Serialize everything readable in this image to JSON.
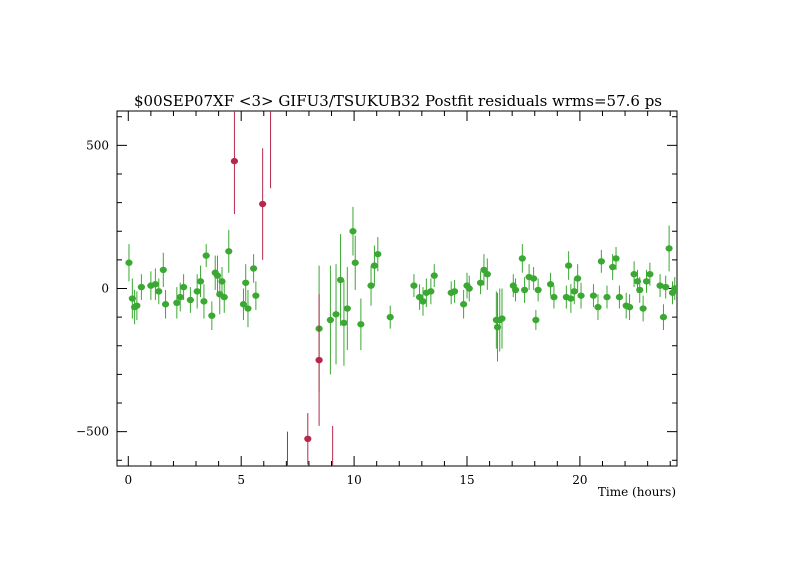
{
  "chart_data": {
    "type": "scatter",
    "title": "$00SEP07XF <3> GIFU3/TSUKUB32 Postfit residuals wrms=57.6  ps",
    "xlabel": "Time (hours)",
    "ylabel": "",
    "xlim": [
      -0.5,
      24.3
    ],
    "ylim": [
      -620,
      620
    ],
    "x_ticks": [
      0,
      5,
      10,
      15,
      20
    ],
    "y_ticks": [
      500,
      0,
      -500
    ],
    "grid": false,
    "legend": "none",
    "colors": {
      "good": "#3aa832",
      "outlier": "#b5284c",
      "axis": "#000000"
    },
    "series": [
      {
        "points": [
          {
            "x": 0.03,
            "y": 90,
            "e": 65
          },
          {
            "x": 0.18,
            "y": -35,
            "e": 70
          },
          {
            "x": 0.28,
            "y": -65,
            "e": 60
          },
          {
            "x": 0.38,
            "y": -60,
            "e": 50
          },
          {
            "x": 0.58,
            "y": 5,
            "e": 45
          },
          {
            "x": 1.0,
            "y": 10,
            "e": 50
          },
          {
            "x": 1.2,
            "y": 15,
            "e": 55
          },
          {
            "x": 1.35,
            "y": -10,
            "e": 45
          },
          {
            "x": 1.55,
            "y": 65,
            "e": 60
          },
          {
            "x": 1.65,
            "y": -55,
            "e": 50
          },
          {
            "x": 2.15,
            "y": -50,
            "e": 55
          },
          {
            "x": 2.3,
            "y": -30,
            "e": 50
          },
          {
            "x": 2.45,
            "y": 5,
            "e": 45
          },
          {
            "x": 2.75,
            "y": -40,
            "e": 45
          },
          {
            "x": 3.05,
            "y": -10,
            "e": 60
          },
          {
            "x": 3.2,
            "y": 25,
            "e": 55
          },
          {
            "x": 3.35,
            "y": -45,
            "e": 60
          },
          {
            "x": 3.45,
            "y": 115,
            "e": 40
          },
          {
            "x": 3.7,
            "y": -95,
            "e": 50
          },
          {
            "x": 3.85,
            "y": 55,
            "e": 60
          },
          {
            "x": 3.95,
            "y": 45,
            "e": 70
          },
          {
            "x": 4.05,
            "y": -20,
            "e": 70
          },
          {
            "x": 4.15,
            "y": 25,
            "e": 50
          },
          {
            "x": 4.25,
            "y": -30,
            "e": 55
          },
          {
            "x": 4.45,
            "y": 130,
            "e": 75
          },
          {
            "x": 5.1,
            "y": -55,
            "e": 55
          },
          {
            "x": 5.2,
            "y": 20,
            "e": 65
          },
          {
            "x": 5.3,
            "y": -70,
            "e": 65
          },
          {
            "x": 5.55,
            "y": 70,
            "e": 50
          },
          {
            "x": 5.65,
            "y": -25,
            "e": 50
          },
          {
            "x": 8.45,
            "y": -140,
            "e": 220
          },
          {
            "x": 8.95,
            "y": -110,
            "e": 190
          },
          {
            "x": 9.2,
            "y": -90,
            "e": 175
          },
          {
            "x": 9.4,
            "y": 30,
            "e": 160
          },
          {
            "x": 9.55,
            "y": -120,
            "e": 150
          },
          {
            "x": 9.7,
            "y": -70,
            "e": 145
          },
          {
            "x": 9.95,
            "y": 200,
            "e": 85
          },
          {
            "x": 10.05,
            "y": 90,
            "e": 95
          },
          {
            "x": 10.3,
            "y": -125,
            "e": 90
          },
          {
            "x": 10.75,
            "y": 10,
            "e": 70
          },
          {
            "x": 10.9,
            "y": 80,
            "e": 70
          },
          {
            "x": 11.05,
            "y": 120,
            "e": 60
          },
          {
            "x": 11.6,
            "y": -100,
            "e": 40
          },
          {
            "x": 12.65,
            "y": 10,
            "e": 40
          },
          {
            "x": 12.9,
            "y": -30,
            "e": 45
          },
          {
            "x": 13.05,
            "y": -45,
            "e": 50
          },
          {
            "x": 13.2,
            "y": -15,
            "e": 50
          },
          {
            "x": 13.4,
            "y": -10,
            "e": 45
          },
          {
            "x": 13.55,
            "y": 45,
            "e": 40
          },
          {
            "x": 14.3,
            "y": -15,
            "e": 40
          },
          {
            "x": 14.45,
            "y": -10,
            "e": 40
          },
          {
            "x": 14.85,
            "y": -55,
            "e": 50
          },
          {
            "x": 15.0,
            "y": 10,
            "e": 45
          },
          {
            "x": 15.1,
            "y": 0,
            "e": 45
          },
          {
            "x": 15.6,
            "y": 20,
            "e": 40
          },
          {
            "x": 15.75,
            "y": 65,
            "e": 55
          },
          {
            "x": 15.9,
            "y": 50,
            "e": 55
          },
          {
            "x": 16.3,
            "y": -110,
            "e": 100
          },
          {
            "x": 16.35,
            "y": -135,
            "e": 120
          },
          {
            "x": 16.45,
            "y": -110,
            "e": 110
          },
          {
            "x": 16.55,
            "y": -105,
            "e": 105
          },
          {
            "x": 17.05,
            "y": 10,
            "e": 40
          },
          {
            "x": 17.15,
            "y": -5,
            "e": 40
          },
          {
            "x": 17.45,
            "y": 105,
            "e": 50
          },
          {
            "x": 17.55,
            "y": -5,
            "e": 45
          },
          {
            "x": 17.75,
            "y": 40,
            "e": 45
          },
          {
            "x": 17.95,
            "y": 35,
            "e": 40
          },
          {
            "x": 18.05,
            "y": -110,
            "e": 35
          },
          {
            "x": 18.15,
            "y": -5,
            "e": 40
          },
          {
            "x": 18.7,
            "y": 15,
            "e": 40
          },
          {
            "x": 18.85,
            "y": -30,
            "e": 40
          },
          {
            "x": 19.4,
            "y": -30,
            "e": 40
          },
          {
            "x": 19.5,
            "y": 80,
            "e": 50
          },
          {
            "x": 19.6,
            "y": -35,
            "e": 50
          },
          {
            "x": 19.75,
            "y": -10,
            "e": 45
          },
          {
            "x": 19.9,
            "y": 35,
            "e": 50
          },
          {
            "x": 20.05,
            "y": -25,
            "e": 45
          },
          {
            "x": 20.6,
            "y": -25,
            "e": 40
          },
          {
            "x": 20.8,
            "y": -65,
            "e": 45
          },
          {
            "x": 20.95,
            "y": 95,
            "e": 40
          },
          {
            "x": 21.2,
            "y": -30,
            "e": 40
          },
          {
            "x": 21.45,
            "y": 75,
            "e": 45
          },
          {
            "x": 21.6,
            "y": 105,
            "e": 40
          },
          {
            "x": 21.75,
            "y": -30,
            "e": 40
          },
          {
            "x": 22.05,
            "y": -60,
            "e": 45
          },
          {
            "x": 22.2,
            "y": -65,
            "e": 45
          },
          {
            "x": 22.4,
            "y": 50,
            "e": 45
          },
          {
            "x": 22.55,
            "y": 25,
            "e": 40
          },
          {
            "x": 22.65,
            "y": -5,
            "e": 45
          },
          {
            "x": 22.8,
            "y": -70,
            "e": 45
          },
          {
            "x": 22.95,
            "y": 25,
            "e": 40
          },
          {
            "x": 23.1,
            "y": 50,
            "e": 40
          },
          {
            "x": 23.55,
            "y": 10,
            "e": 40
          },
          {
            "x": 23.7,
            "y": -100,
            "e": 45
          },
          {
            "x": 23.8,
            "y": 5,
            "e": 40
          },
          {
            "x": 23.95,
            "y": 140,
            "e": 80
          },
          {
            "x": 24.1,
            "y": -15,
            "e": 40
          },
          {
            "x": 24.2,
            "y": 0,
            "e": 40
          }
        ]
      },
      {
        "points": [
          {
            "x": 4.7,
            "y": 445,
            "e": 185
          },
          {
            "x": 5.95,
            "y": 295,
            "e": 195
          },
          {
            "x": 6.3,
            "y": 700,
            "e": 350
          },
          {
            "x": 7.05,
            "y": -690,
            "e": 190
          },
          {
            "x": 7.95,
            "y": -525,
            "e": 90
          },
          {
            "x": 8.45,
            "y": -250,
            "e": 230
          },
          {
            "x": 9.05,
            "y": -680,
            "e": 200
          }
        ]
      }
    ]
  }
}
